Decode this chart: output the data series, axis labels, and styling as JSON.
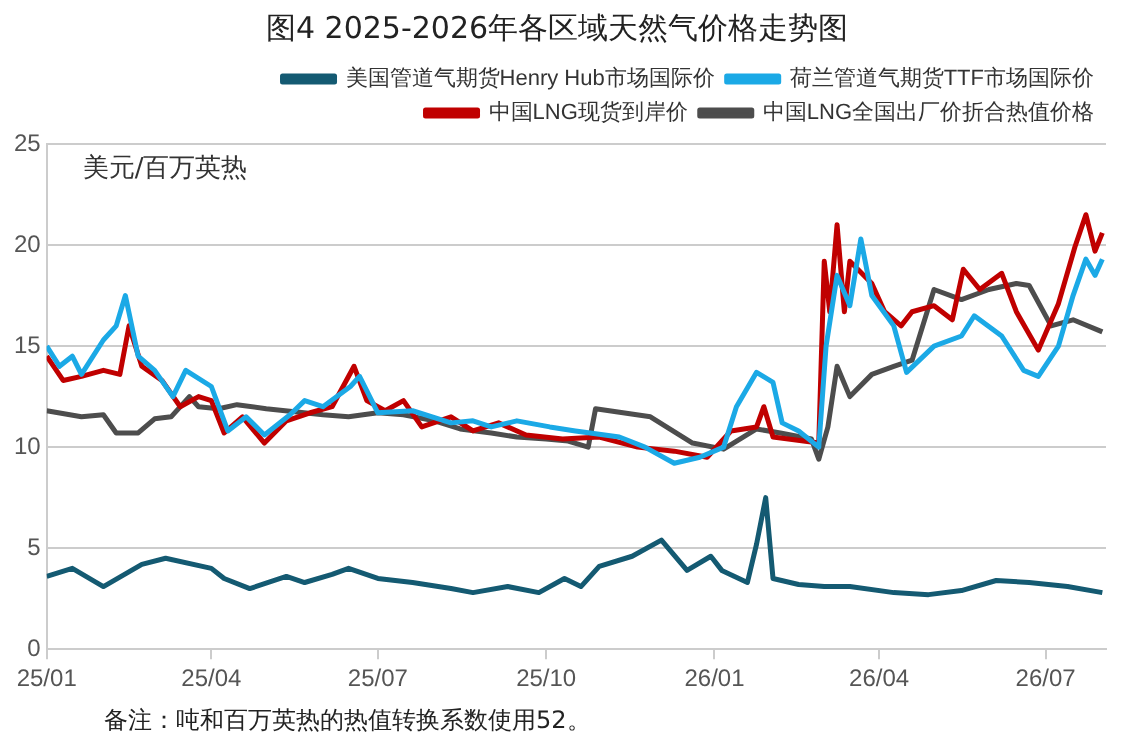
{
  "chart_data": {
    "type": "line",
    "title": "图4 2025-2026年各区域天然气价格走势图",
    "ylabel": "美元/百万英热",
    "annotations": [
      "备注：吨和百万英热的热值转换系数使用52。"
    ],
    "xlim": [
      "2025-01-01",
      "2026-08-03"
    ],
    "xticks": [
      {
        "value": "2025-01-01",
        "label": "25/01"
      },
      {
        "value": "2025-04-01",
        "label": "25/04"
      },
      {
        "value": "2025-07-01",
        "label": "25/07"
      },
      {
        "value": "2025-10-01",
        "label": "25/10"
      },
      {
        "value": "2026-01-01",
        "label": "26/01"
      },
      {
        "value": "2026-04-01",
        "label": "26/04"
      },
      {
        "value": "2026-07-01",
        "label": "26/07"
      }
    ],
    "ylim": [
      0,
      25
    ],
    "yticks": [
      0,
      5,
      10,
      15,
      20,
      25
    ],
    "grid": "y",
    "legend": "top",
    "marker": "none",
    "line_style": "solid",
    "series": [
      {
        "name": "美国管道气期货Henry Hub市场国际价",
        "color": "#145a72",
        "x": [
          "2025-01-01",
          "2025-01-15",
          "2025-02-01",
          "2025-02-22",
          "2025-03-07",
          "2025-04-01",
          "2025-04-08",
          "2025-04-22",
          "2025-05-12",
          "2025-05-22",
          "2025-06-06",
          "2025-06-15",
          "2025-07-01",
          "2025-07-20",
          "2025-08-10",
          "2025-08-22",
          "2025-09-10",
          "2025-09-27",
          "2025-10-11",
          "2025-10-20",
          "2025-10-30",
          "2025-11-17",
          "2025-12-03",
          "2025-12-17",
          "2025-12-30",
          "2026-01-05",
          "2026-01-19",
          "2026-01-24",
          "2026-01-29",
          "2026-02-02",
          "2026-02-16",
          "2026-03-02",
          "2026-03-16",
          "2026-04-09",
          "2026-04-28",
          "2026-05-16",
          "2026-06-04",
          "2026-06-22",
          "2026-07-13",
          "2026-08-01"
        ],
        "values": [
          3.6,
          4.0,
          3.1,
          4.2,
          4.5,
          4.0,
          3.5,
          3.0,
          3.6,
          3.3,
          3.7,
          4.0,
          3.5,
          3.3,
          3.0,
          2.8,
          3.1,
          2.8,
          3.5,
          3.1,
          4.1,
          4.6,
          5.4,
          3.9,
          4.6,
          3.9,
          3.3,
          5.2,
          7.5,
          3.5,
          3.2,
          3.1,
          3.1,
          2.8,
          2.7,
          2.9,
          3.4,
          3.3,
          3.1,
          2.8
        ]
      },
      {
        "name": "荷兰管道气期货TTF市场国际价",
        "color": "#1ba9e6",
        "x": [
          "2025-01-01",
          "2025-01-08",
          "2025-01-15",
          "2025-01-20",
          "2025-02-01",
          "2025-02-08",
          "2025-02-13",
          "2025-02-20",
          "2025-03-01",
          "2025-03-11",
          "2025-03-18",
          "2025-04-01",
          "2025-04-10",
          "2025-04-20",
          "2025-04-30",
          "2025-05-14",
          "2025-05-22",
          "2025-06-01",
          "2025-06-16",
          "2025-06-21",
          "2025-07-01",
          "2025-07-20",
          "2025-08-10",
          "2025-08-22",
          "2025-09-01",
          "2025-09-15",
          "2025-10-03",
          "2025-10-17",
          "2025-11-10",
          "2025-11-24",
          "2025-12-10",
          "2025-12-24",
          "2026-01-06",
          "2026-01-13",
          "2026-01-24",
          "2026-02-02",
          "2026-02-07",
          "2026-02-16",
          "2026-02-27",
          "2026-03-03",
          "2026-03-09",
          "2026-03-16",
          "2026-03-22",
          "2026-03-28",
          "2026-04-09",
          "2026-04-16",
          "2026-05-01",
          "2026-05-16",
          "2026-05-23",
          "2026-06-07",
          "2026-06-19",
          "2026-06-27",
          "2026-07-08",
          "2026-07-16",
          "2026-07-23",
          "2026-07-28",
          "2026-08-01"
        ],
        "values": [
          15.0,
          14.0,
          14.5,
          13.6,
          15.3,
          16.0,
          17.5,
          14.5,
          13.8,
          12.5,
          13.8,
          13.0,
          10.8,
          11.5,
          10.6,
          11.6,
          12.3,
          12.0,
          13.0,
          13.5,
          11.7,
          11.8,
          11.2,
          11.3,
          11.0,
          11.3,
          11.0,
          10.8,
          10.5,
          10.0,
          9.2,
          9.5,
          10.0,
          12.0,
          13.7,
          13.2,
          11.2,
          10.8,
          10.0,
          15.0,
          18.5,
          17.0,
          20.3,
          17.5,
          16.0,
          13.7,
          15.0,
          15.5,
          16.5,
          15.5,
          13.8,
          13.5,
          15.0,
          17.5,
          19.3,
          18.5,
          19.3
        ]
      },
      {
        "name": "中国LNG现货到岸价",
        "color": "#c00000",
        "x": [
          "2025-01-01",
          "2025-01-10",
          "2025-01-20",
          "2025-02-01",
          "2025-02-10",
          "2025-02-15",
          "2025-02-22",
          "2025-03-05",
          "2025-03-15",
          "2025-03-25",
          "2025-04-01",
          "2025-04-08",
          "2025-04-18",
          "2025-04-30",
          "2025-05-12",
          "2025-05-25",
          "2025-06-06",
          "2025-06-18",
          "2025-06-25",
          "2025-07-05",
          "2025-07-15",
          "2025-07-25",
          "2025-08-10",
          "2025-08-22",
          "2025-09-05",
          "2025-09-20",
          "2025-10-10",
          "2025-10-30",
          "2025-11-20",
          "2025-12-10",
          "2025-12-28",
          "2026-01-10",
          "2026-01-24",
          "2026-01-28",
          "2026-02-02",
          "2026-02-27",
          "2026-03-02",
          "2026-03-05",
          "2026-03-09",
          "2026-03-13",
          "2026-03-16",
          "2026-03-28",
          "2026-04-04",
          "2026-04-13",
          "2026-04-19",
          "2026-05-01",
          "2026-05-11",
          "2026-05-17",
          "2026-05-26",
          "2026-06-07",
          "2026-06-15",
          "2026-06-27",
          "2026-07-08",
          "2026-07-17",
          "2026-07-23",
          "2026-07-28",
          "2026-08-01"
        ],
        "values": [
          14.5,
          13.3,
          13.5,
          13.8,
          13.6,
          16.0,
          14.0,
          13.3,
          12.0,
          12.5,
          12.3,
          10.7,
          11.5,
          10.2,
          11.3,
          11.7,
          12.0,
          14.0,
          12.3,
          11.8,
          12.3,
          11.0,
          11.5,
          10.8,
          11.2,
          10.6,
          10.4,
          10.5,
          10.0,
          9.8,
          9.5,
          10.8,
          11.0,
          12.0,
          10.5,
          10.2,
          19.2,
          16.7,
          21.0,
          16.7,
          19.2,
          18.1,
          16.7,
          16.0,
          16.7,
          17.0,
          16.3,
          18.8,
          17.8,
          18.6,
          16.7,
          14.8,
          17.1,
          19.9,
          21.5,
          19.7,
          20.6
        ]
      },
      {
        "name": "中国LNG全国出厂价折合热值价格",
        "color": "#4d4d4d",
        "x": [
          "2025-01-01",
          "2025-01-20",
          "2025-02-01",
          "2025-02-08",
          "2025-02-20",
          "2025-03-01",
          "2025-03-10",
          "2025-03-20",
          "2025-03-25",
          "2025-04-05",
          "2025-04-15",
          "2025-05-01",
          "2025-06-01",
          "2025-06-15",
          "2025-07-01",
          "2025-07-15",
          "2025-08-01",
          "2025-08-15",
          "2025-09-01",
          "2025-09-15",
          "2025-10-01",
          "2025-10-13",
          "2025-10-24",
          "2025-10-28",
          "2025-11-27",
          "2025-12-20",
          "2026-01-06",
          "2026-01-24",
          "2026-02-06",
          "2026-02-23",
          "2026-02-27",
          "2026-03-04",
          "2026-03-09",
          "2026-03-16",
          "2026-03-28",
          "2026-04-09",
          "2026-04-19",
          "2026-05-01",
          "2026-05-16",
          "2026-05-31",
          "2026-06-15",
          "2026-06-22",
          "2026-07-04",
          "2026-07-16",
          "2026-08-01"
        ],
        "values": [
          11.8,
          11.5,
          11.6,
          10.7,
          10.7,
          11.4,
          11.5,
          12.5,
          12.0,
          11.9,
          12.1,
          11.9,
          11.6,
          11.5,
          11.7,
          11.6,
          11.3,
          10.9,
          10.7,
          10.5,
          10.4,
          10.3,
          10.0,
          11.9,
          11.5,
          10.2,
          9.9,
          10.9,
          10.7,
          10.4,
          9.4,
          11.0,
          14.0,
          12.5,
          13.6,
          14.0,
          14.3,
          17.8,
          17.3,
          17.8,
          18.1,
          18.0,
          16.0,
          16.3,
          15.7
        ]
      }
    ]
  }
}
